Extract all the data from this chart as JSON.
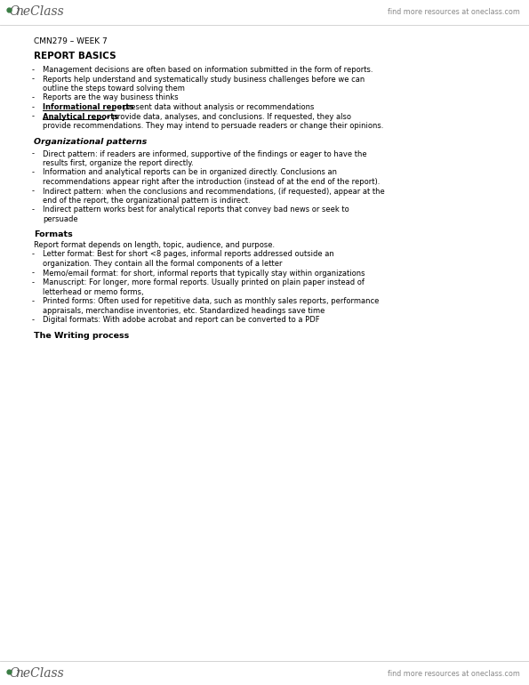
{
  "bg_color": "#ffffff",
  "text_color": "#000000",
  "gray_text": "#888888",
  "green_color": "#3a7d44",
  "find_more_text": "find more resources at oneclass.com",
  "week_label": "CMN279 – WEEK 7",
  "section1_title": "REPORT BASICS",
  "bullets1": [
    [
      "normal",
      "Management decisions are often based on information submitted in the form of reports."
    ],
    [
      "normal",
      "Reports help understand and systematically study business challenges before we can\noutline the steps toward solving them"
    ],
    [
      "normal",
      "Reports are the way business thinks"
    ],
    [
      "bold_ul",
      "Informational reports",
      " – present data without analysis or recommendations"
    ],
    [
      "bold_ul2",
      "Analytical reports",
      " – provide data, analyses, and conclusions. If requested, they also\nprovide recommendations. They may intend to persuade readers or change their opinions."
    ]
  ],
  "section2_title": "Organizational patterns",
  "bullets2": [
    "Direct pattern: if readers are informed, supportive of the findings or eager to have the\nresults first, organize the report directly.",
    "Information and analytical reports can be in organized directly. Conclusions an\nrecommendations appear right after the introduction (instead of at the end of the report).",
    "Indirect pattern: when the conclusions and recommendations, (if requested), appear at the\nend of the report, the organizational pattern is indirect.",
    "Indirect pattern works best for analytical reports that convey bad news or seek to\npersuade"
  ],
  "section3_title": "Formats",
  "section3_intro": "Report format depends on length, topic, audience, and purpose.",
  "bullets3": [
    "Letter format: Best for short <8 pages, informal reports addressed outside an\norganization. They contain all the formal components of a letter",
    "Memo/email format: for short, informal reports that typically stay within organizations",
    "Manuscript: For longer, more formal reports. Usually printed on plain paper instead of\nletterhead or memo forms,",
    "Printed forms: Often used for repetitive data, such as monthly sales reports, performance\nappraisals, merchandise inventories, etc. Standardized headings save time",
    "Digital formats: With adobe acrobat and report can be converted to a PDF"
  ],
  "section4_title": "The Writing process"
}
